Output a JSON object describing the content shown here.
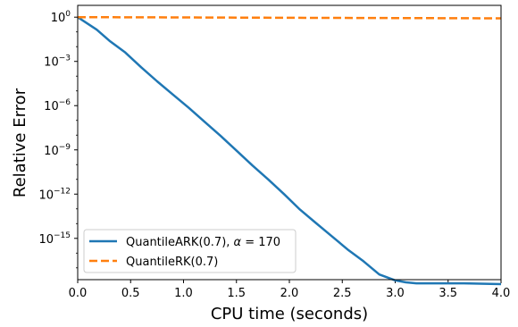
{
  "chart_data": {
    "type": "line",
    "xlabel": "CPU time (seconds)",
    "ylabel": "Relative Error",
    "xlim": [
      0,
      4
    ],
    "ylim_log10": [
      -17.8,
      0.8
    ],
    "y_scale": "log",
    "x_ticks": [
      {
        "value": 0,
        "label": "0.0"
      },
      {
        "value": 0.5,
        "label": "0.5"
      },
      {
        "value": 1,
        "label": "1.0"
      },
      {
        "value": 1.5,
        "label": "1.5"
      },
      {
        "value": 2,
        "label": "2.0"
      },
      {
        "value": 2.5,
        "label": "2.5"
      },
      {
        "value": 3,
        "label": "3.0"
      },
      {
        "value": 3.5,
        "label": "3.5"
      },
      {
        "value": 4,
        "label": "4.0"
      }
    ],
    "y_ticks": [
      {
        "exp": 0,
        "base": "10",
        "sup": "0"
      },
      {
        "exp": -3,
        "base": "10",
        "sup": "−3"
      },
      {
        "exp": -6,
        "base": "10",
        "sup": "−6"
      },
      {
        "exp": -9,
        "base": "10",
        "sup": "−9"
      },
      {
        "exp": -12,
        "base": "10",
        "sup": "−12"
      },
      {
        "exp": -15,
        "base": "10",
        "sup": "−15"
      }
    ],
    "grid": false,
    "legend_position": "lower-left",
    "series": [
      {
        "name": "QuantileARK(0.7), α = 170",
        "name_parts": [
          "QuantileARK(0.7), ",
          "α",
          " = 170"
        ],
        "color": "#1f77b4",
        "style": "solid",
        "x": [
          0,
          0.18,
          0.3,
          0.45,
          0.6,
          0.75,
          0.9,
          1.05,
          1.2,
          1.35,
          1.5,
          1.65,
          1.8,
          1.95,
          2.1,
          2.25,
          2.4,
          2.55,
          2.7,
          2.85,
          3.0,
          3.1,
          3.2,
          3.35,
          3.5,
          3.65,
          3.8,
          4.0
        ],
        "log10_y": [
          0,
          -0.85,
          -1.6,
          -2.4,
          -3.4,
          -4.35,
          -5.25,
          -6.15,
          -7.1,
          -8.05,
          -9.05,
          -10.05,
          -11.0,
          -12.0,
          -13.05,
          -13.95,
          -14.85,
          -15.75,
          -16.55,
          -17.45,
          -17.85,
          -17.98,
          -18.05,
          -18.05,
          -18.05,
          -18.05,
          -18.07,
          -18.1
        ]
      },
      {
        "name": "QuantileRK(0.7)",
        "color": "#ff7f0e",
        "style": "dashed",
        "x": [
          0,
          1,
          2,
          3,
          4
        ],
        "log10_y": [
          0,
          -0.02,
          -0.04,
          -0.06,
          -0.08
        ]
      }
    ]
  }
}
